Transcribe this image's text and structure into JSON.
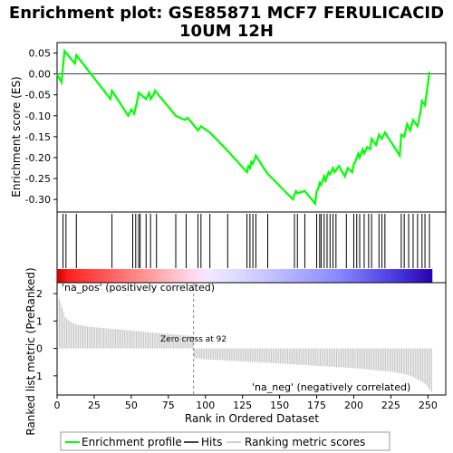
{
  "title_line1": "Enrichment plot: GSE85871 MCF7 FERULICACID",
  "title_line2": "10UM 12H",
  "legend": {
    "enrichment": "Enrichment profile",
    "hits": "Hits",
    "ranking": "Ranking metric scores"
  },
  "colors": {
    "enrichment_line": "#00ff00",
    "pos_text": "#cc0000",
    "neg_text": "#0000cc",
    "bars": "#c0c0c0",
    "zero_line": "#808080"
  },
  "chart_data": [
    {
      "type": "line",
      "panel": "enrichment",
      "ylabel": "Enrichment score (ES)",
      "ylim": [
        -0.33,
        0.075
      ],
      "yticks": [
        0.05,
        0.0,
        -0.05,
        -0.1,
        -0.15,
        -0.2,
        -0.25,
        -0.3
      ],
      "ytick_labels": [
        "0.05",
        "0.00",
        "-0.05",
        "-0.10",
        "-0.15",
        "-0.20",
        "-0.25",
        "-0.30"
      ],
      "xlim": [
        0,
        262
      ],
      "series": [
        {
          "x": [
            0,
            3,
            5,
            12,
            13,
            36,
            37,
            48,
            50,
            52,
            54,
            55,
            60,
            62,
            63,
            65,
            66,
            80,
            86,
            88,
            95,
            97,
            99,
            103,
            114,
            128,
            129,
            130,
            131,
            132,
            133,
            134,
            141,
            159,
            161,
            162,
            167,
            174,
            175,
            176,
            177,
            178,
            180,
            181,
            183,
            184,
            186,
            187,
            190,
            194,
            196,
            199,
            200,
            201,
            203,
            204,
            206,
            207,
            209,
            211,
            212,
            215,
            217,
            219,
            221,
            231,
            232,
            234,
            236,
            238,
            240,
            243,
            245,
            246,
            248,
            251
          ],
          "y": [
            0.0,
            -0.02,
            0.055,
            0.025,
            0.045,
            -0.06,
            -0.04,
            -0.1,
            -0.085,
            -0.095,
            -0.065,
            -0.045,
            -0.06,
            -0.045,
            -0.06,
            -0.05,
            -0.04,
            -0.1,
            -0.11,
            -0.105,
            -0.135,
            -0.125,
            -0.13,
            -0.14,
            -0.18,
            -0.235,
            -0.22,
            -0.225,
            -0.21,
            -0.215,
            -0.205,
            -0.195,
            -0.235,
            -0.3,
            -0.28,
            -0.285,
            -0.28,
            -0.31,
            -0.28,
            -0.275,
            -0.26,
            -0.265,
            -0.245,
            -0.255,
            -0.235,
            -0.24,
            -0.225,
            -0.235,
            -0.22,
            -0.245,
            -0.225,
            -0.235,
            -0.215,
            -0.21,
            -0.19,
            -0.2,
            -0.18,
            -0.19,
            -0.175,
            -0.18,
            -0.155,
            -0.17,
            -0.145,
            -0.155,
            -0.14,
            -0.195,
            -0.145,
            -0.15,
            -0.12,
            -0.135,
            -0.11,
            -0.125,
            -0.09,
            -0.065,
            -0.075,
            0.005
          ]
        }
      ]
    },
    {
      "type": "scatter",
      "panel": "hits",
      "x": [
        4,
        6,
        13,
        37,
        51,
        53,
        55,
        56,
        60,
        63,
        67,
        80,
        87,
        95,
        97,
        103,
        115,
        128,
        130,
        132,
        134,
        142,
        160,
        162,
        167,
        175,
        177,
        178,
        180,
        182,
        184,
        186,
        188,
        195,
        200,
        202,
        204,
        207,
        210,
        212,
        217,
        219,
        221,
        232,
        234,
        237,
        240,
        243,
        246,
        248,
        251
      ]
    },
    {
      "type": "bar",
      "panel": "ranking",
      "ylabel": "Ranked list metric (PreRanked)",
      "xlabel": "Rank in Ordered Dataset",
      "ylim": [
        -1.7,
        2.4
      ],
      "yticks": [
        2,
        1,
        0,
        -1
      ],
      "ytick_labels": [
        "2",
        "1",
        "0",
        "-1"
      ],
      "xticks": [
        0,
        25,
        50,
        75,
        100,
        125,
        150,
        175,
        200,
        225,
        250
      ],
      "xtick_labels": [
        "0",
        "25",
        "50",
        "75",
        "100",
        "125",
        "150",
        "175",
        "200",
        "225",
        "250"
      ],
      "xlim": [
        0,
        262
      ],
      "n_genes": 253,
      "zero_cross": 92,
      "zero_cross_label": "Zero cross at 92",
      "pos_label": "'na_pos' (positively correlated)",
      "neg_label": "'na_neg' (negatively correlated)",
      "profile_x": [
        0,
        1,
        3,
        5,
        8,
        12,
        20,
        40,
        60,
        80,
        91,
        92,
        100,
        150,
        200,
        225,
        235,
        240,
        245,
        248,
        250,
        252
      ],
      "profile_y": [
        2.1,
        1.8,
        1.5,
        1.15,
        1.0,
        0.88,
        0.8,
        0.7,
        0.6,
        0.5,
        0.45,
        -0.35,
        -0.4,
        -0.55,
        -0.72,
        -0.85,
        -0.95,
        -1.05,
        -1.2,
        -1.3,
        -1.45,
        -1.6
      ]
    }
  ]
}
